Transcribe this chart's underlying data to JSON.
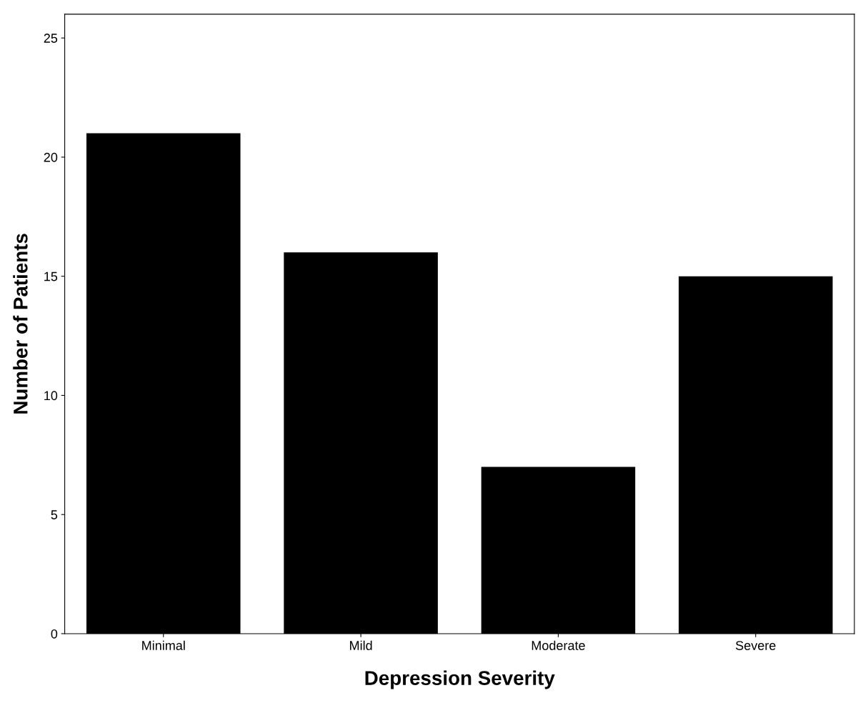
{
  "chart_data": {
    "type": "bar",
    "xlabel": "Depression Severity",
    "ylabel": "Number of Patients",
    "categories": [
      "Minimal",
      "Mild",
      "Moderate",
      "Severe"
    ],
    "values": [
      21,
      16,
      7,
      15
    ],
    "color": "#000000",
    "ylim": [
      0,
      26
    ],
    "yticks": [
      0,
      5,
      10,
      15,
      20,
      25
    ],
    "grid": false
  }
}
